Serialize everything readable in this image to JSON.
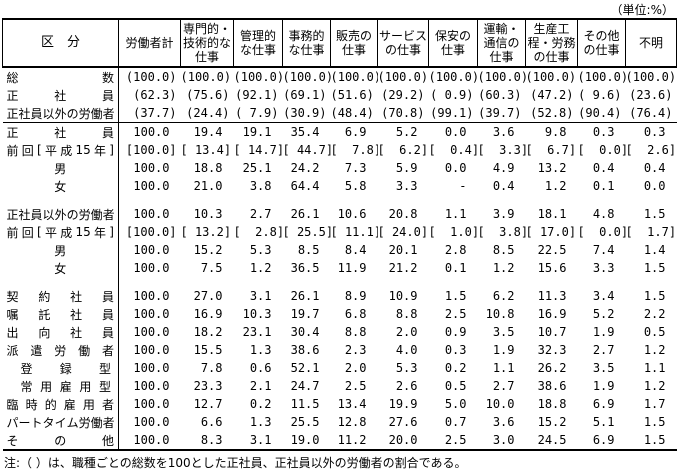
{
  "unit_label": "（単位:%）",
  "note": "注:（ ）は、職種ごとの総数を100とした正社員、正社員以外の労働者の割合である。",
  "table": {
    "corner_header": "区　分",
    "columns": [
      "労働者計",
      "専門的・技術的な仕事",
      "管理的な仕事",
      "事務的な仕事",
      "販売の仕事",
      "サービスの仕事",
      "保安の仕事",
      "運輸・通信の仕事",
      "生産工程・労務の仕事",
      "その他の仕事",
      "不明"
    ],
    "groups": [
      {
        "rows": [
          {
            "label": "総数",
            "values": [
              "(100.0)",
              "(100.0)",
              "(100.0)",
              "(100.0)",
              "(100.0)",
              "(100.0)",
              "(100.0)",
              "(100.0)",
              "(100.0)",
              "(100.0)",
              "(100.0)"
            ]
          },
          {
            "label": "正社員",
            "values": [
              "(62.3)",
              "(75.6)",
              "(92.1)",
              "(69.1)",
              "(51.6)",
              "(29.2)",
              "( 0.9)",
              "(60.3)",
              "(47.2)",
              "( 9.6)",
              "(23.6)"
            ]
          },
          {
            "label": "正社員以外の労働者",
            "values": [
              "(37.7)",
              "(24.4)",
              "( 7.9)",
              "(30.9)",
              "(48.4)",
              "(70.8)",
              "(99.1)",
              "(39.7)",
              "(52.8)",
              "(90.4)",
              "(76.4)"
            ]
          }
        ]
      },
      {
        "rows": [
          {
            "label": "正社員",
            "values": [
              "100.0",
              "19.4",
              "19.1",
              "35.4",
              "6.9",
              "5.2",
              "0.0",
              "3.6",
              "9.8",
              "0.3",
              "0.3"
            ]
          },
          {
            "label": "前回[平成15年]",
            "values": [
              "[100.0]",
              "[ 13.4]",
              "[ 14.7]",
              "[ 44.7]",
              "[  7.8]",
              "[  6.2]",
              "[  0.4]",
              "[  3.3]",
              "[  6.7]",
              "[  0.0]",
              "[  2.6]"
            ]
          },
          {
            "label": "男",
            "center": true,
            "values": [
              "100.0",
              "18.8",
              "25.1",
              "24.2",
              "7.3",
              "5.9",
              "0.0",
              "4.9",
              "13.2",
              "0.4",
              "0.4"
            ]
          },
          {
            "label": "女",
            "center": true,
            "values": [
              "100.0",
              "21.0",
              "3.8",
              "64.4",
              "5.8",
              "3.3",
              "-",
              "0.4",
              "1.2",
              "0.1",
              "0.0"
            ]
          }
        ]
      },
      {
        "rows": [
          {
            "label": "正社員以外の労働者",
            "values": [
              "100.0",
              "10.3",
              "2.7",
              "26.1",
              "10.6",
              "20.8",
              "1.1",
              "3.9",
              "18.1",
              "4.8",
              "1.5"
            ]
          },
          {
            "label": "前回[平成15年]",
            "values": [
              "[100.0]",
              "[ 13.2]",
              "[  2.8]",
              "[ 25.5]",
              "[ 11.1]",
              "[ 24.0]",
              "[  1.0]",
              "[  3.8]",
              "[ 17.0]",
              "[  0.0]",
              "[  1.7]"
            ]
          },
          {
            "label": "男",
            "center": true,
            "values": [
              "100.0",
              "15.2",
              "5.3",
              "8.5",
              "8.4",
              "20.1",
              "2.8",
              "8.5",
              "22.5",
              "7.4",
              "1.4"
            ]
          },
          {
            "label": "女",
            "center": true,
            "values": [
              "100.0",
              "7.5",
              "1.2",
              "36.5",
              "11.9",
              "21.2",
              "0.1",
              "1.2",
              "15.6",
              "3.3",
              "1.5"
            ]
          }
        ]
      },
      {
        "rows": [
          {
            "label": "契約社員",
            "values": [
              "100.0",
              "27.0",
              "3.1",
              "26.1",
              "8.9",
              "10.9",
              "1.5",
              "6.2",
              "11.3",
              "3.4",
              "1.5"
            ]
          },
          {
            "label": "嘱託社員",
            "values": [
              "100.0",
              "16.9",
              "10.3",
              "19.7",
              "6.8",
              "8.8",
              "2.5",
              "10.8",
              "16.9",
              "5.2",
              "2.2"
            ]
          },
          {
            "label": "出向社員",
            "values": [
              "100.0",
              "18.2",
              "23.1",
              "30.4",
              "8.8",
              "2.0",
              "0.9",
              "3.5",
              "10.7",
              "1.9",
              "0.5"
            ]
          },
          {
            "label": "派遣労働者",
            "values": [
              "100.0",
              "15.5",
              "1.3",
              "38.6",
              "2.3",
              "4.0",
              "0.3",
              "1.9",
              "32.3",
              "2.7",
              "1.2"
            ]
          },
          {
            "label": "登録型",
            "indent": true,
            "values": [
              "100.0",
              "7.8",
              "0.6",
              "52.1",
              "2.0",
              "5.3",
              "0.2",
              "1.1",
              "26.2",
              "3.5",
              "1.1"
            ]
          },
          {
            "label": "常用雇用型",
            "indent": true,
            "values": [
              "100.0",
              "23.3",
              "2.1",
              "24.7",
              "2.5",
              "2.6",
              "0.5",
              "2.7",
              "38.6",
              "1.9",
              "1.2"
            ]
          },
          {
            "label": "臨時的雇用者",
            "values": [
              "100.0",
              "12.7",
              "0.2",
              "11.5",
              "13.4",
              "19.9",
              "5.0",
              "10.0",
              "18.8",
              "6.9",
              "1.7"
            ]
          },
          {
            "label": "パートタイム労働者",
            "values": [
              "100.0",
              "6.6",
              "1.3",
              "25.5",
              "12.8",
              "27.6",
              "0.7",
              "3.6",
              "15.2",
              "5.1",
              "1.5"
            ]
          },
          {
            "label": "その他",
            "values": [
              "100.0",
              "8.3",
              "3.1",
              "19.0",
              "11.2",
              "20.0",
              "2.5",
              "3.0",
              "24.5",
              "6.9",
              "1.5"
            ]
          }
        ]
      }
    ]
  }
}
